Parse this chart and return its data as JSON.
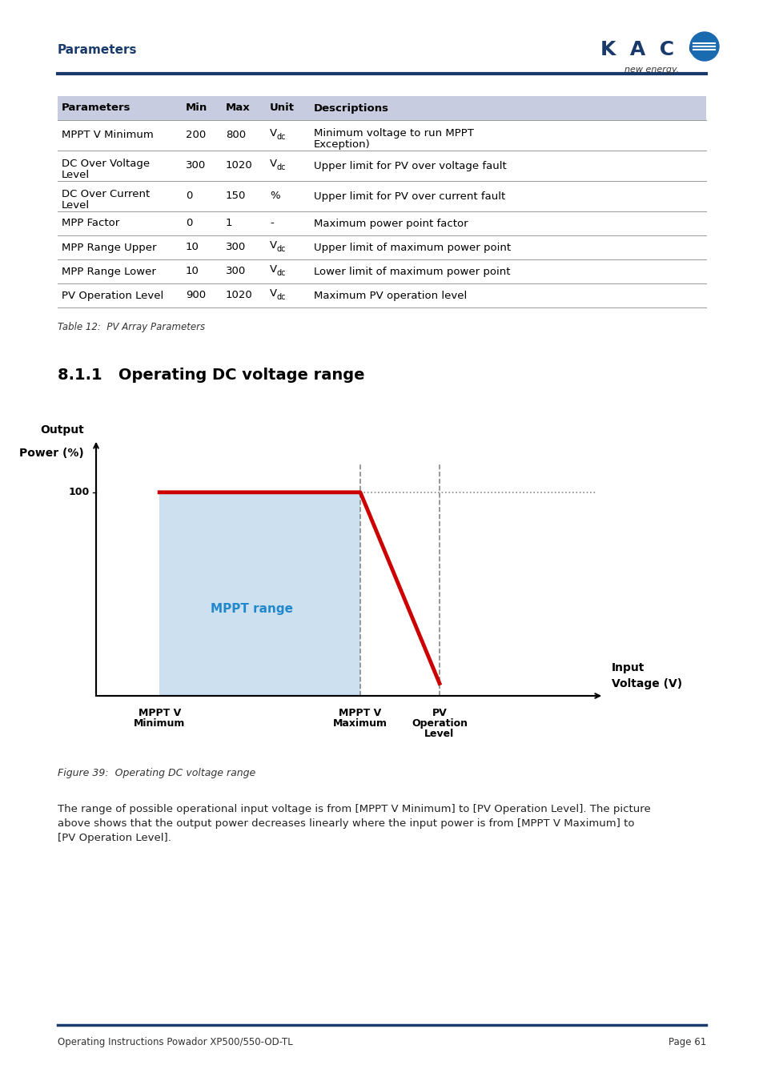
{
  "page_bg": "#ffffff",
  "header_text": "Parameters",
  "header_color": "#1a3a6b",
  "kaco_text": "KACO",
  "new_energy_text": "new energy.",
  "header_line_color": "#1a3a6b",
  "table_header_bg": "#c8cce0",
  "table_row_line_color": "#999999",
  "table_cols": [
    "Parameters",
    "Min",
    "Max",
    "Unit",
    "Descriptions"
  ],
  "table_rows": [
    [
      "MPPT V Minimum",
      "200",
      "800",
      "V_dc",
      "Minimum voltage to run MPPT\nException)"
    ],
    [
      "DC Over Voltage\nLevel",
      "300",
      "1020",
      "V_dc",
      "Upper limit for PV over voltage fault"
    ],
    [
      "DC Over Current\nLevel",
      "0",
      "150",
      "%",
      "Upper limit for PV over current fault"
    ],
    [
      "MPP Factor",
      "0",
      "1",
      "-",
      "Maximum power point factor"
    ],
    [
      "MPP Range Upper",
      "10",
      "300",
      "V_dc",
      "Upper limit of maximum power point"
    ],
    [
      "MPP Range Lower",
      "10",
      "300",
      "V_dc",
      "Lower limit of maximum power point"
    ],
    [
      "PV Operation Level",
      "900",
      "1020",
      "V_dc",
      "Maximum PV operation level"
    ]
  ],
  "table_caption": "Table 12:  PV Array Parameters",
  "section_title": "8.1.1   Operating DC voltage range",
  "chart_ylabel_line1": "Output",
  "chart_ylabel_line2": "Power (%)",
  "chart_xlabel_line1": "Input",
  "chart_xlabel_line2": "Voltage (V)",
  "chart_ytick_100": "100",
  "chart_fill_color": "#cce0f0",
  "chart_line_color": "#cc0000",
  "chart_dashed_color": "#888888",
  "chart_mppt_label": "MPPT range",
  "chart_mppt_label_color": "#2288cc",
  "chart_xticklabel1_line1": "MPPT V",
  "chart_xticklabel1_line2": "Minimum",
  "chart_xticklabel2_line1": "MPPT V",
  "chart_xticklabel2_line2": "Maximum",
  "chart_xticklabel3_line1": "PV",
  "chart_xticklabel3_line2": "Operation",
  "chart_xticklabel3_line3": "Level",
  "figure_caption": "Figure 39:  Operating DC voltage range",
  "body_text": "The range of possible operational input voltage is from [MPPT V Minimum] to [PV Operation Level]. The picture\nabove shows that the output power decreases linearly where the input power is from [MPPT V Maximum] to\n[PV Operation Level].",
  "footer_left": "Operating Instructions Powador XP500/550-OD-TL",
  "footer_right": "Page 61",
  "footer_line_color": "#1a3a6b"
}
